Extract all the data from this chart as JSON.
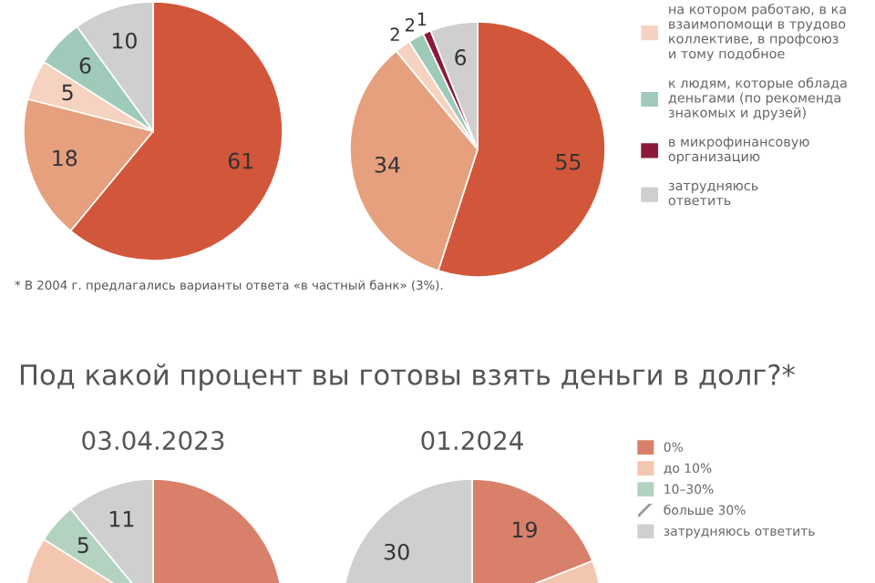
{
  "chart_data": [
    {
      "type": "pie",
      "values": [
        61,
        18,
        5,
        6,
        10
      ],
      "colors": [
        "#d2573a",
        "#e6a07e",
        "#f5d3c0",
        "#9fc9b9",
        "#cfcfcf"
      ],
      "data_labels": true,
      "annotations": [
        "* В 2004 г. предлагались варианты ответа «в частный банк» (3%)."
      ]
    },
    {
      "type": "pie",
      "categories": [
        null,
        null,
        "на котором работаю, в ка\nвзаимопомощи в трудово\nколлективе, в профсоюз\nи тому подобное",
        "к людям, которые облада\nденьгами (по рекоменда\nзнакомых и друзей)",
        "в микрофинансовую\nорганизацию",
        "затрудняюсь\nответить"
      ],
      "values": [
        55,
        34,
        2,
        2,
        1,
        6
      ],
      "colors": [
        "#d2573a",
        "#e6a07e",
        "#f5d3c0",
        "#9fc9b9",
        "#8b1a3a",
        "#cfcfcf"
      ],
      "data_labels": true,
      "legend": "right"
    },
    {
      "type": "pie",
      "title": "Под какой процент вы готовы взять деньги в долг?*",
      "subtitle": "03.04.2023",
      "values": [
        60,
        24,
        5,
        11
      ],
      "colors": [
        "#d9806a",
        "#f3c6b0",
        "#b3d3c0",
        "#cfcfcf"
      ],
      "value_labels": [
        null,
        null,
        "5",
        "11"
      ]
    },
    {
      "type": "pie",
      "subtitle": "01.2024",
      "categories": [
        "0%",
        "до 10%",
        "10–30%",
        "больше 30%",
        "затрудняюсь ответить"
      ],
      "values": [
        19,
        51,
        null,
        null,
        30
      ],
      "colors": [
        "#d9806a",
        "#f3c6b0",
        "#b3d3c0",
        "#ffffff",
        "#cfcfcf"
      ],
      "value_labels": [
        "19",
        null,
        null,
        null,
        "30"
      ],
      "legend": "right"
    }
  ]
}
